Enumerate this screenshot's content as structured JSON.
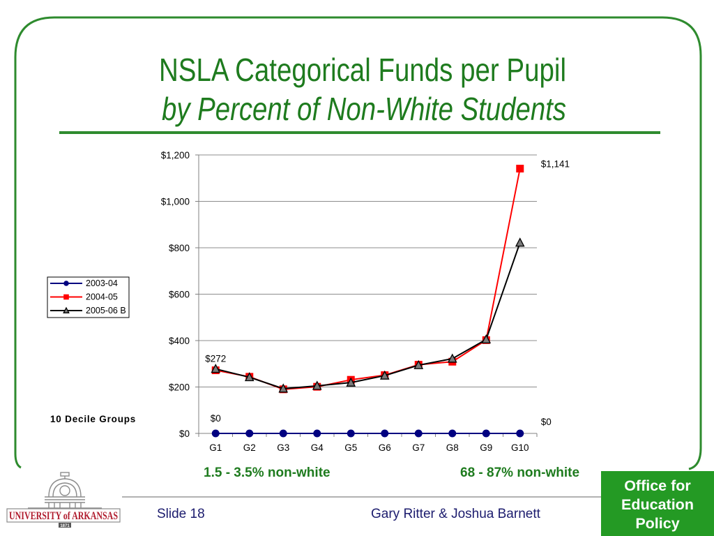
{
  "slide": {
    "title": "NSLA Categorical Funds per Pupil",
    "subtitle": "by Percent of Non-White Students",
    "group_note": "10 Decile Groups",
    "range_low_label": "1.5 - 3.5% non-white",
    "range_high_label": "68 - 87% non-white",
    "slide_number": "Slide 18",
    "authors": "Gary Ritter & Joshua Barnett",
    "office_box": [
      "Office for",
      "Education",
      "Policy"
    ]
  },
  "logo": {
    "name": "UNIVERSITY of ARKANSAS",
    "year": "1871",
    "icon": "old-main-building-icon"
  },
  "colors": {
    "frame_green": "#2e8b2e",
    "title_green": "#1e7b1e",
    "office_box_green": "#249a24",
    "office_box_text": "#ffffff",
    "footer_text": "#1c1c6e",
    "logo_red": "#b01c2e",
    "logo_gray": "#8c8c8c"
  },
  "chart_data": {
    "type": "line",
    "title": "",
    "xlabel": "",
    "ylabel": "",
    "categories": [
      "G1",
      "G2",
      "G3",
      "G4",
      "G5",
      "G6",
      "G7",
      "G8",
      "G9",
      "G10"
    ],
    "ylim": [
      0,
      1200
    ],
    "y_ticks": [
      {
        "value": 0,
        "label": "$0"
      },
      {
        "value": 200,
        "label": "$200"
      },
      {
        "value": 400,
        "label": "$400"
      },
      {
        "value": 600,
        "label": "$600"
      },
      {
        "value": 800,
        "label": "$800"
      },
      {
        "value": 1000,
        "label": "$1,000"
      },
      {
        "value": 1200,
        "label": "$1,200"
      }
    ],
    "grid": true,
    "legend_position": "left",
    "series": [
      {
        "name": "2003-04",
        "values": [
          0,
          0,
          0,
          0,
          0,
          0,
          0,
          0,
          0,
          0
        ],
        "color": "#000080",
        "marker": "circle",
        "marker_fill": "#000080"
      },
      {
        "name": "2004-05",
        "values": [
          272,
          244,
          190,
          201,
          231,
          251,
          296,
          309,
          402,
          1141
        ],
        "color": "#ff0000",
        "marker": "square",
        "marker_fill": "#ff0000"
      },
      {
        "name": "2005-06 B",
        "values": [
          278,
          242,
          193,
          205,
          219,
          249,
          294,
          322,
          405,
          822
        ],
        "color": "#000000",
        "marker": "triangle",
        "marker_fill": "#7a7a7a"
      }
    ],
    "data_labels": [
      {
        "series": "2004-05",
        "category": "G1",
        "text": "$272",
        "placement": "above"
      },
      {
        "series": "2003-04",
        "category": "G1",
        "text": "$0",
        "placement": "above"
      },
      {
        "series": "2004-05",
        "category": "G10",
        "text": "$1,141",
        "placement": "right"
      },
      {
        "series": "2003-04",
        "category": "G10",
        "text": "$0",
        "placement": "right"
      }
    ]
  }
}
